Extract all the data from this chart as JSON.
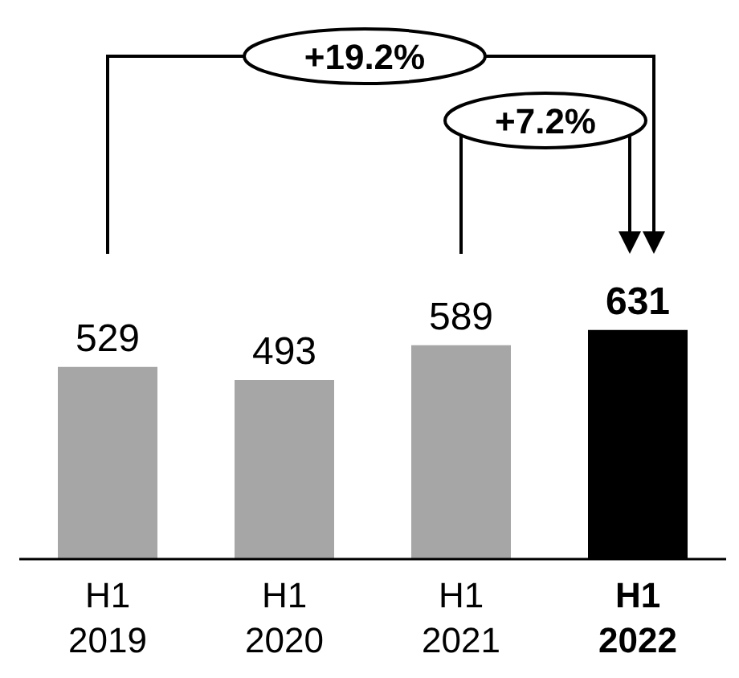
{
  "chart_data": {
    "type": "bar",
    "categories": [
      "H1 2019",
      "H1 2020",
      "H1 2021",
      "H1 2022"
    ],
    "values": [
      529,
      493,
      589,
      631
    ],
    "colors": [
      "#a6a6a6",
      "#a6a6a6",
      "#a6a6a6",
      "#000000"
    ],
    "data_labels": true,
    "annotations": [
      "+19.2%",
      "+7.2%"
    ]
  }
}
